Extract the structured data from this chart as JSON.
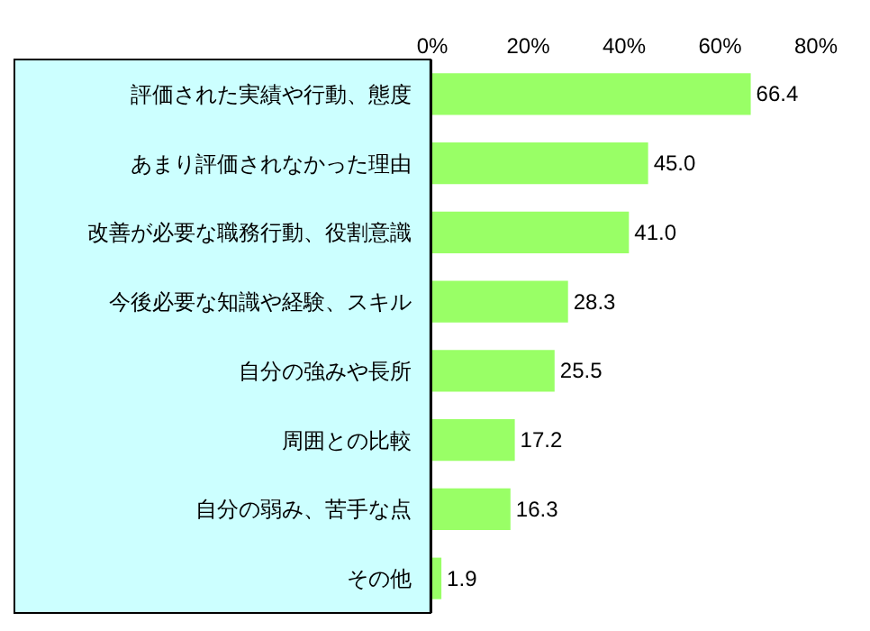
{
  "chart_data": {
    "type": "bar",
    "orientation": "horizontal",
    "categories": [
      "評価された実績や行動、態度",
      "あまり評価されなかった理由",
      "改善が必要な職務行動、役割意識",
      "今後必要な知識や経験、スキル",
      "自分の強みや長所",
      "周囲との比較",
      "自分の弱み、苦手な点",
      "その他"
    ],
    "values": [
      66.4,
      45.0,
      41.0,
      28.3,
      25.5,
      17.2,
      16.3,
      1.9
    ],
    "value_labels": [
      "66.4",
      "45.0",
      "41.0",
      "28.3",
      "25.5",
      "17.2",
      "16.3",
      "1.9"
    ],
    "color": "#99ff66",
    "xlim": [
      0,
      80
    ],
    "xticks": [
      {
        "value": 0,
        "label": "0%"
      },
      {
        "value": 20,
        "label": "20%"
      },
      {
        "value": 40,
        "label": "40%"
      },
      {
        "value": 60,
        "label": "60%"
      },
      {
        "value": 80,
        "label": "80%"
      }
    ],
    "grid": false
  }
}
